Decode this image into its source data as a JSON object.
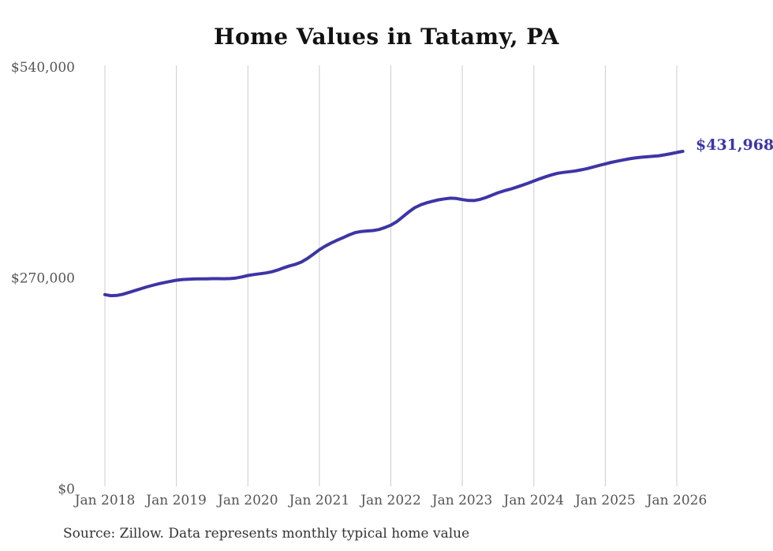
{
  "chart_data": {
    "type": "line",
    "title": "Home Values in Tatamy, PA",
    "xlabel": "",
    "ylabel": "",
    "ylim": [
      0,
      540000
    ],
    "grid": "vertical-only",
    "grid_color": "#cccccc",
    "axis_label_color": "#555555",
    "title_color": "#111111",
    "source_color": "#333333",
    "background_color": "#ffffff",
    "line_color": "#3d35a5",
    "end_label": "$431,968",
    "end_value": 431968,
    "source": "Source: Zillow. Data represents monthly typical home value",
    "y_ticks": [
      {
        "value": 0,
        "label": "$0"
      },
      {
        "value": 270000,
        "label": "$270,000"
      },
      {
        "value": 540000,
        "label": "$540,000"
      }
    ],
    "x_tick_labels": [
      "Jan 2018",
      "Jan 2019",
      "Jan 2020",
      "Jan 2021",
      "Jan 2022",
      "Jan 2023",
      "Jan 2024",
      "Jan 2025",
      "Jan 2026"
    ],
    "months_per_tick": 12,
    "frequency": "monthly",
    "x_start": "Jan 2018",
    "x_end": "Feb 2026",
    "series": [
      {
        "name": "Typical home value",
        "values": [
          248500,
          247200,
          247500,
          249000,
          251200,
          253600,
          256000,
          258400,
          260400,
          262300,
          264000,
          265600,
          267000,
          267900,
          268300,
          268600,
          268700,
          268800,
          269000,
          269000,
          268900,
          269100,
          269800,
          271200,
          273000,
          274200,
          275200,
          276300,
          277800,
          280000,
          282800,
          285300,
          287400,
          290300,
          294800,
          300300,
          306000,
          310700,
          314700,
          318200,
          321600,
          325000,
          327900,
          329400,
          330100,
          330600,
          331900,
          334400,
          337500,
          342100,
          348100,
          354400,
          359800,
          363500,
          366100,
          368100,
          369900,
          371100,
          372000,
          371600,
          370200,
          369100,
          369000,
          370500,
          373000,
          376000,
          379000,
          381400,
          383500,
          385900,
          388400,
          391100,
          394000,
          396900,
          399500,
          401900,
          403900,
          405100,
          406000,
          407000,
          408400,
          410000,
          412000,
          414000,
          416000,
          417900,
          419500,
          421000,
          422400,
          423500,
          424400,
          425000,
          425600,
          426300,
          427600,
          429000,
          430600,
          431968
        ]
      }
    ]
  }
}
